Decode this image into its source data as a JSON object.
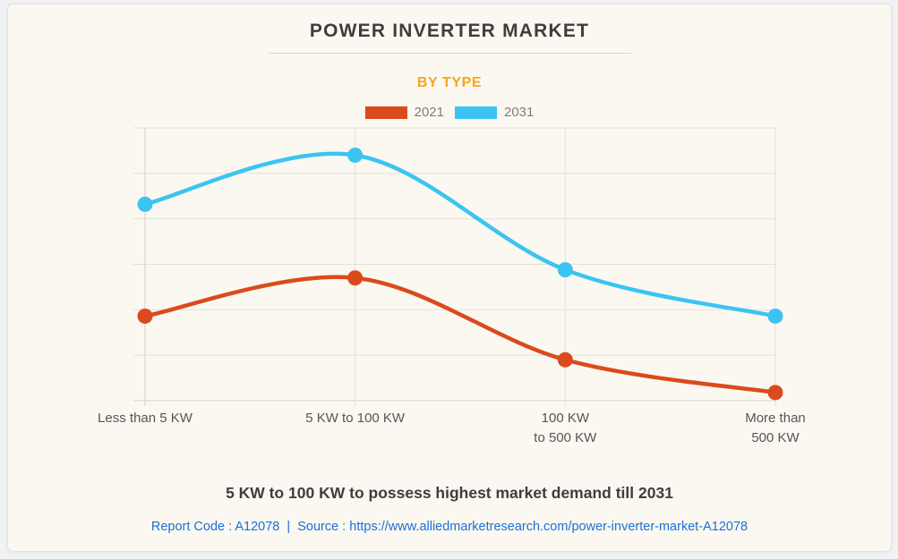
{
  "header": {
    "title": "POWER INVERTER MARKET",
    "subtitle": "BY TYPE"
  },
  "legend": {
    "position": "top",
    "items": [
      {
        "label": "2021",
        "color": "#db4a1c"
      },
      {
        "label": "2031",
        "color": "#3bc4f2"
      }
    ]
  },
  "footer": {
    "headline": "5 KW to 100 KW to possess highest market demand till 2031",
    "source_line": "Report Code : A12078  |  Source : https://www.alliedmarketresearch.com/power-inverter-market-A12078"
  },
  "colors": {
    "card_background": "#faf8f1",
    "accent_orange": "#f9a51c",
    "series_2021": "#db4a1c",
    "series_2031": "#3bc4f2",
    "link_blue": "#1e6ed8",
    "title_gray": "#3e3e3e",
    "gridline": "#e3e0d8",
    "axis_line": "#d5d2ca"
  },
  "chart_data": {
    "type": "line",
    "title": "POWER INVERTER MARKET",
    "subtitle": "BY TYPE",
    "categories": [
      "Less than 5 KW",
      "5 KW to 100 KW",
      "100 KW to 500 KW",
      "More than 500 KW"
    ],
    "category_label_lines": [
      [
        "Less than 5 KW"
      ],
      [
        "5 KW to 100 KW"
      ],
      [
        "100 KW",
        "to 500 KW"
      ],
      [
        "More than",
        "500 KW"
      ]
    ],
    "series": [
      {
        "name": "2021",
        "color": "#db4a1c",
        "values": [
          31,
          45,
          15,
          3
        ]
      },
      {
        "name": "2031",
        "color": "#3bc4f2",
        "values": [
          72,
          90,
          48,
          31
        ]
      }
    ],
    "xlabel": "",
    "ylabel": "",
    "ylim": [
      0,
      100
    ],
    "y_axis": "unlabeled (no tick labels shown; values are relative estimates on 0-100 scale)",
    "grid": true,
    "gridline_rows": 6,
    "line_style": "smooth curve with solid circular markers",
    "legend_position": "top"
  }
}
